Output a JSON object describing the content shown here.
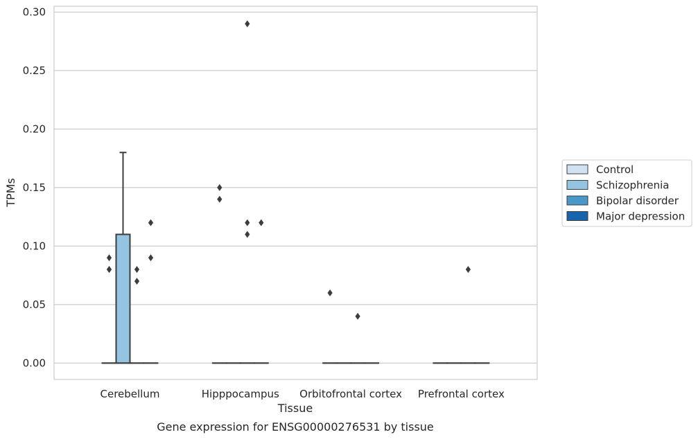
{
  "chart_data": {
    "type": "box",
    "title": "Gene expression for ENSG00000276531 by tissue",
    "xlabel": "Tissue",
    "ylabel": "TPMs",
    "ylim": [
      -0.014,
      0.305
    ],
    "yticks": [
      0.0,
      0.05,
      0.1,
      0.15,
      0.2,
      0.25,
      0.3
    ],
    "ytick_labels": [
      "0.00",
      "0.05",
      "0.10",
      "0.15",
      "0.20",
      "0.25",
      "0.30"
    ],
    "grid": "horizontal",
    "legend_position": "right",
    "categories": [
      "Cerebellum",
      "Hipppocampus",
      "Orbitofrontal cortex",
      "Prefrontal cortex"
    ],
    "series": [
      {
        "name": "Control",
        "color": "#d0e1f2",
        "boxes": [
          {
            "q1": 0,
            "median": 0,
            "q3": 0,
            "whisker_low": 0,
            "whisker_high": 0,
            "outliers": [
              0.09,
              0.08,
              0.08
            ]
          },
          {
            "q1": 0,
            "median": 0,
            "q3": 0,
            "whisker_low": 0,
            "whisker_high": 0,
            "outliers": [
              0.15,
              0.14
            ]
          },
          {
            "q1": 0,
            "median": 0,
            "q3": 0,
            "whisker_low": 0,
            "whisker_high": 0,
            "outliers": [
              0.06
            ]
          },
          {
            "q1": 0,
            "median": 0,
            "q3": 0,
            "whisker_low": 0,
            "whisker_high": 0,
            "outliers": []
          }
        ]
      },
      {
        "name": "Schizophrenia",
        "color": "#94c4df",
        "boxes": [
          {
            "q1": 0,
            "median": 0,
            "q3": 0.11,
            "whisker_low": 0,
            "whisker_high": 0.18,
            "outliers": []
          },
          {
            "q1": 0,
            "median": 0,
            "q3": 0,
            "whisker_low": 0,
            "whisker_high": 0,
            "outliers": []
          },
          {
            "q1": 0,
            "median": 0,
            "q3": 0,
            "whisker_low": 0,
            "whisker_high": 0,
            "outliers": []
          },
          {
            "q1": 0,
            "median": 0,
            "q3": 0,
            "whisker_low": 0,
            "whisker_high": 0,
            "outliers": []
          }
        ]
      },
      {
        "name": "Bipolar disorder",
        "color": "#4a98c9",
        "boxes": [
          {
            "q1": 0,
            "median": 0,
            "q3": 0,
            "whisker_low": 0,
            "whisker_high": 0,
            "outliers": [
              0.08,
              0.07
            ]
          },
          {
            "q1": 0,
            "median": 0,
            "q3": 0,
            "whisker_low": 0,
            "whisker_high": 0,
            "outliers": [
              0.29,
              0.12,
              0.11
            ]
          },
          {
            "q1": 0,
            "median": 0,
            "q3": 0,
            "whisker_low": 0,
            "whisker_high": 0,
            "outliers": [
              0.04
            ]
          },
          {
            "q1": 0,
            "median": 0,
            "q3": 0,
            "whisker_low": 0,
            "whisker_high": 0,
            "outliers": [
              0.08
            ]
          }
        ]
      },
      {
        "name": "Major depression",
        "color": "#1764ab",
        "boxes": [
          {
            "q1": 0,
            "median": 0,
            "q3": 0,
            "whisker_low": 0,
            "whisker_high": 0,
            "outliers": [
              0.12,
              0.09
            ]
          },
          {
            "q1": 0,
            "median": 0,
            "q3": 0,
            "whisker_low": 0,
            "whisker_high": 0,
            "outliers": [
              0.12
            ]
          },
          {
            "q1": 0,
            "median": 0,
            "q3": 0,
            "whisker_low": 0,
            "whisker_high": 0,
            "outliers": []
          },
          {
            "q1": 0,
            "median": 0,
            "q3": 0,
            "whisker_low": 0,
            "whisker_high": 0,
            "outliers": []
          }
        ]
      }
    ]
  }
}
